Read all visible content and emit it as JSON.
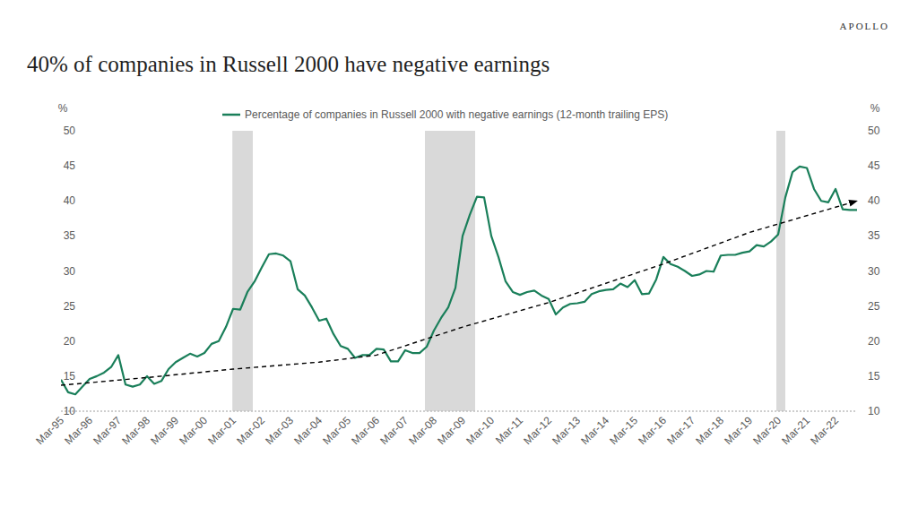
{
  "chart_data": {
    "type": "line",
    "title": "40% of companies in Russell 2000 have negative earnings",
    "logo_text": "APOLLO",
    "y_label": "%",
    "y2_label": "%",
    "legend": "top",
    "grid": false,
    "categories": [
      "Mar-95",
      null,
      null,
      null,
      "Mar-96",
      null,
      null,
      null,
      "Mar-97",
      null,
      null,
      null,
      "Mar-98",
      null,
      null,
      null,
      "Mar-99",
      null,
      null,
      null,
      "Mar-00",
      null,
      null,
      null,
      "Mar-01",
      null,
      null,
      null,
      "Mar-02",
      null,
      null,
      null,
      "Mar-03",
      null,
      null,
      null,
      "Mar-04",
      null,
      null,
      null,
      "Mar-05",
      null,
      null,
      null,
      "Mar-06",
      null,
      null,
      null,
      "Mar-07",
      null,
      null,
      null,
      "Mar-08",
      null,
      null,
      null,
      "Mar-09",
      null,
      null,
      null,
      "Mar-10",
      null,
      null,
      null,
      "Mar-11",
      null,
      null,
      null,
      "Mar-12",
      null,
      null,
      null,
      "Mar-13",
      null,
      null,
      null,
      "Mar-14",
      null,
      null,
      null,
      "Mar-15",
      null,
      null,
      null,
      "Mar-16",
      null,
      null,
      null,
      "Mar-17",
      null,
      null,
      null,
      "Mar-18",
      null,
      null,
      null,
      "Mar-19",
      null,
      null,
      null,
      "Mar-20",
      null,
      null,
      null,
      "Mar-21",
      null,
      null,
      null,
      "Mar-22",
      null,
      null,
      null
    ],
    "series": [
      {
        "name": "Percentage of companies in Russell 2000 with negative earnings (12-month trailing EPS)",
        "color": "#1a7f5a",
        "line_style": "solid",
        "values": [
          14.5,
          12.7,
          12.4,
          13.5,
          14.6,
          15.0,
          15.5,
          16.3,
          18.0,
          13.8,
          13.5,
          13.8,
          15.0,
          13.9,
          14.3,
          16.0,
          17.0,
          17.6,
          18.2,
          17.8,
          18.3,
          19.6,
          20.0,
          22.0,
          24.6,
          24.5,
          27.0,
          28.5,
          30.5,
          32.4,
          32.5,
          32.2,
          31.4,
          27.4,
          26.5,
          24.8,
          22.9,
          23.2,
          21.0,
          19.3,
          18.9,
          17.6,
          18.0,
          18.0,
          18.9,
          18.8,
          17.1,
          17.1,
          18.7,
          18.3,
          18.3,
          19.2,
          21.5,
          23.3,
          24.8,
          27.6,
          35.0,
          38.0,
          40.6,
          40.5,
          35.0,
          32.0,
          28.5,
          27.0,
          26.6,
          27.0,
          27.2,
          26.5,
          26.0,
          23.8,
          24.8,
          25.3,
          25.4,
          25.6,
          26.7,
          27.1,
          27.3,
          27.4,
          28.2,
          27.7,
          28.7,
          26.7,
          26.8,
          28.8,
          32.0,
          31.0,
          30.6,
          30.0,
          29.3,
          29.5,
          30.0,
          29.9,
          32.2,
          32.3,
          32.3,
          32.6,
          32.8,
          33.7,
          33.5,
          34.2,
          35.2,
          40.5,
          44.1,
          44.9,
          44.7,
          41.7,
          40.0,
          39.8,
          41.7,
          38.8,
          38.7,
          38.7
        ]
      }
    ],
    "trend": {
      "x": [
        0,
        12,
        24,
        36,
        44,
        56,
        68,
        84,
        96,
        111
      ],
      "values": [
        13.7,
        14.8,
        16.0,
        17.0,
        18.0,
        22.0,
        25.5,
        31.0,
        35.5,
        40.0
      ],
      "color": "#000000",
      "line_style": "dashed",
      "marker": "arrow"
    },
    "recessions": [
      {
        "start": 23.9,
        "end": 26.75
      },
      {
        "start": 50.75,
        "end": 57.75
      },
      {
        "start": 99.75,
        "end": 101.0
      }
    ],
    "ylim": [
      10,
      50
    ],
    "yticks": [
      10,
      15,
      20,
      25,
      30,
      35,
      40,
      45,
      50
    ],
    "y2lim": [
      10,
      50
    ],
    "y2ticks": [
      10,
      15,
      20,
      25,
      30,
      35,
      40,
      45,
      50
    ]
  }
}
